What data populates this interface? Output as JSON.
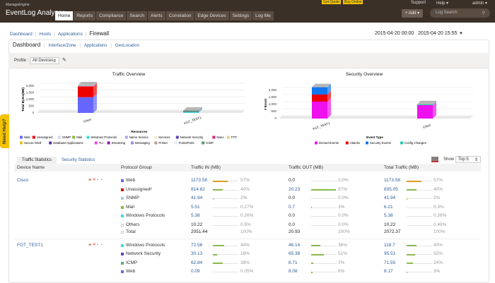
{
  "header": {
    "brand_small": "ManageEngine",
    "brand": "EventLog Analyzer",
    "get_quote": "Get Quote",
    "buy_online": "Buy Online",
    "support": "Support",
    "help": "Help ▾",
    "user": "admin ▾",
    "add": "+ Add ▾",
    "log_search_placeholder": "Log Search",
    "nav": [
      "Home",
      "Reports",
      "Compliance",
      "Search",
      "Alerts",
      "Correlation",
      "Edge Devices",
      "Settings",
      "Log Me"
    ]
  },
  "breadcrumb": [
    "Dashboard",
    "Hosts",
    "Applications",
    "Firewall"
  ],
  "date_range": {
    "from": "2015-04-20 00:00",
    "to": "2015-04-20 15:55"
  },
  "subtabs": [
    "Dashboard",
    "Interface/Zone",
    "Applications",
    "GeoLocation"
  ],
  "profile": {
    "label": "Profile :",
    "value": "All Devices"
  },
  "need_help": "Need Help?",
  "traffic_chart": {
    "title": "Traffic Overview",
    "ylabel": "Total Bytes(MB)",
    "xlabel": "Resources",
    "yticks": [
      "0",
      "500",
      "1,000",
      "1,500",
      "2,000"
    ],
    "ymax": 2000,
    "categories": [
      "Cisco",
      "FGT_TEST1"
    ],
    "series": [
      {
        "name": "Web",
        "color": "#6666ff",
        "values": [
          1173.58,
          0.09
        ]
      },
      {
        "name": "Unassigned",
        "color": "#ee0000",
        "values": [
          814.82,
          0
        ]
      },
      {
        "name": "SNMP",
        "color": "#c8d8ee",
        "values": [
          41.94,
          0
        ]
      },
      {
        "name": "Mail",
        "color": "#88bb33",
        "values": [
          5.51,
          0
        ]
      },
      {
        "name": "Windows Protocols",
        "color": "#33dddd",
        "values": [
          5.38,
          72.56
        ]
      },
      {
        "name": "Name Service",
        "color": "#aaaaee",
        "values": [
          0,
          0
        ]
      },
      {
        "name": "Services",
        "color": "#eeeecc",
        "values": [
          0,
          0
        ]
      },
      {
        "name": "Network Security",
        "color": "#6644bb",
        "values": [
          10.22,
          30.13
        ]
      },
      {
        "name": "Nano",
        "color": "#dd2277",
        "values": [
          0,
          0
        ]
      },
      {
        "name": "FTP",
        "color": "#eecc88",
        "values": [
          0,
          0
        ]
      },
      {
        "name": "Secure Shell",
        "color": "#eebb22",
        "values": [
          0,
          0
        ]
      },
      {
        "name": "Database Applications",
        "color": "#5533aa",
        "values": [
          0,
          0
        ]
      },
      {
        "name": "TLI",
        "color": "#ee44dd",
        "values": [
          0,
          0
        ]
      },
      {
        "name": "Streaming",
        "color": "#8822aa",
        "values": [
          0,
          0
        ]
      },
      {
        "name": "Messaging",
        "color": "#9988ee",
        "values": [
          0,
          0
        ]
      },
      {
        "name": "Printer",
        "color": "#bb9999",
        "values": [
          0,
          0
        ]
      },
      {
        "name": "Point2Point",
        "color": "#ddeeff",
        "values": [
          0,
          0
        ]
      },
      {
        "name": "ICMP",
        "color": "#559966",
        "values": [
          0,
          62.84
        ]
      }
    ]
  },
  "security_chart": {
    "title": "Security Overview",
    "ylabel": "# Event",
    "xlabel": "Event Type",
    "yticks": [
      "0",
      "500",
      "1,000",
      "1,500",
      "2,000"
    ],
    "ymax": 2000,
    "categories": [
      "FGT_TEST1",
      "Cisco"
    ],
    "series": [
      {
        "name": "Denied Events",
        "color": "#ee11ee",
        "values": [
          1200,
          950
        ]
      },
      {
        "name": "Attacks",
        "color": "#ee0000",
        "values": [
          500,
          0
        ]
      },
      {
        "name": "Security Events",
        "color": "#1177ee",
        "values": [
          520,
          0
        ]
      },
      {
        "name": "Config Changes",
        "color": "#22ccaa",
        "values": [
          0,
          60
        ]
      }
    ]
  },
  "stats_tabs": [
    "Traffic Statistics",
    "Security Statistics"
  ],
  "show": {
    "label": "Show",
    "value": "Top 5"
  },
  "table": {
    "headers": [
      "Device Name",
      "Protocol Group",
      "Traffic IN (MB)",
      "Traffic OUT (MB)",
      "Total Traffic (MB)"
    ],
    "devices": [
      {
        "name": "Cisco",
        "rows": [
          {
            "proto": "Web",
            "color": "#6666ee",
            "in": "1173.58",
            "in_pct": "57%",
            "in_f": 0.57,
            "out": "0.0",
            "out_pct": "0.0%",
            "out_f": 0,
            "tot": "1173.58",
            "tot_pct": "57%",
            "tot_f": 0.57
          },
          {
            "proto": "Unassigned",
            "color": "#dd0000",
            "in": "814.82",
            "in_pct": "40%",
            "in_f": 0.4,
            "out": "20.23",
            "out_pct": "97%",
            "out_f": 0.97,
            "tot": "835.05",
            "tot_pct": "40%",
            "tot_f": 0.4
          },
          {
            "proto": "SNMP",
            "color": "#aaccdd",
            "in": "41.94",
            "in_pct": "2%",
            "in_f": 0.02,
            "out": "0.0",
            "out_pct": "0.0%",
            "out_f": 0,
            "tot": "41.94",
            "tot_pct": "2%",
            "tot_f": 0.02
          },
          {
            "proto": "Mail",
            "color": "#88bb33",
            "in": "5.51",
            "in_pct": "0.27%",
            "in_f": 0,
            "out": "0.7",
            "out_pct": "3%",
            "out_f": 0.03,
            "tot": "6.21",
            "tot_pct": "0.3%",
            "tot_f": 0
          },
          {
            "proto": "Windows Protocols",
            "color": "#33dddd",
            "in": "5.38",
            "in_pct": "0.26%",
            "in_f": 0,
            "out": "0.0",
            "out_pct": "0.0%",
            "out_f": 0,
            "tot": "5.38",
            "tot_pct": "0.26%",
            "tot_f": 0
          },
          {
            "proto": "Others",
            "color": "",
            "in": "10.22",
            "in_pct": "0.5%",
            "in_f": 0,
            "out": "0.0",
            "out_pct": "0.0%",
            "out_f": 0,
            "tot": "10.22",
            "tot_pct": "0.49%",
            "tot_f": 0
          },
          {
            "proto": "Total",
            "color": "",
            "in": "2051.44",
            "in_pct": "100%",
            "in_f": -1,
            "out": "20.93",
            "out_pct": "100%",
            "out_f": -1,
            "tot": "2072.37",
            "tot_pct": "100%",
            "tot_f": -1
          }
        ]
      },
      {
        "name": "FGT_TEST1",
        "rows": [
          {
            "proto": "Windows Protocols",
            "color": "#33dddd",
            "in": "72.56",
            "in_pct": "44%",
            "in_f": 0.44,
            "out": "46.14",
            "out_pct": "36%",
            "out_f": 0.36,
            "tot": "118.7",
            "tot_pct": "40%",
            "tot_f": 0.4
          },
          {
            "proto": "Network Security",
            "color": "#6644bb",
            "in": "30.13",
            "in_pct": "18%",
            "in_f": 0.18,
            "out": "65.38",
            "out_pct": "51%",
            "out_f": 0.51,
            "tot": "95.51",
            "tot_pct": "32%",
            "tot_f": 0.32
          },
          {
            "proto": "ICMP",
            "color": "#66aa77",
            "in": "62.84",
            "in_pct": "38%",
            "in_f": 0.38,
            "out": "8.71",
            "out_pct": "7%",
            "out_f": 0.07,
            "tot": "71.55",
            "tot_pct": "24%",
            "tot_f": 0.24
          },
          {
            "proto": "Web",
            "color": "#6666ee",
            "in": "0.09",
            "in_pct": "0.05%",
            "in_f": 0,
            "out": "8.08",
            "out_pct": "6%",
            "out_f": 0.06,
            "tot": "8.17",
            "tot_pct": "3%",
            "tot_f": 0.03
          }
        ]
      }
    ]
  }
}
